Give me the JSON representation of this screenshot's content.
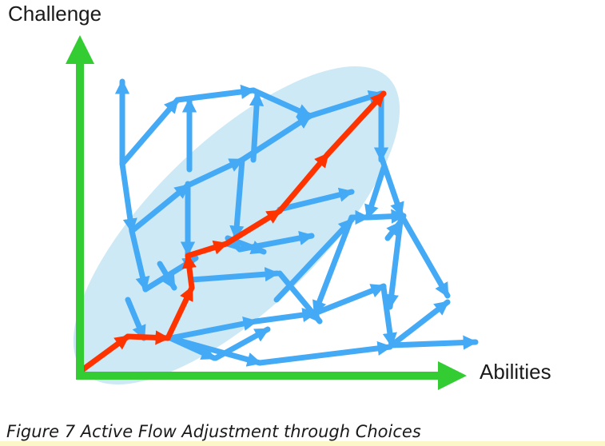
{
  "figure": {
    "y_axis_label": "Challenge",
    "x_axis_label": "Abilities",
    "caption": "Figure 7 Active Flow Adjustment through Choices"
  },
  "colors": {
    "axis": "#33cc33",
    "flow_zone": "#cce9f5",
    "choice_arrows": "#44aaf6",
    "chosen_path": "#ff3300",
    "caption_band": "#fbf7c8"
  },
  "legend_semantics": {
    "flow_zone": "flow-channel",
    "blue_arrows": "available-choices",
    "red_arrows": "chosen-path"
  }
}
